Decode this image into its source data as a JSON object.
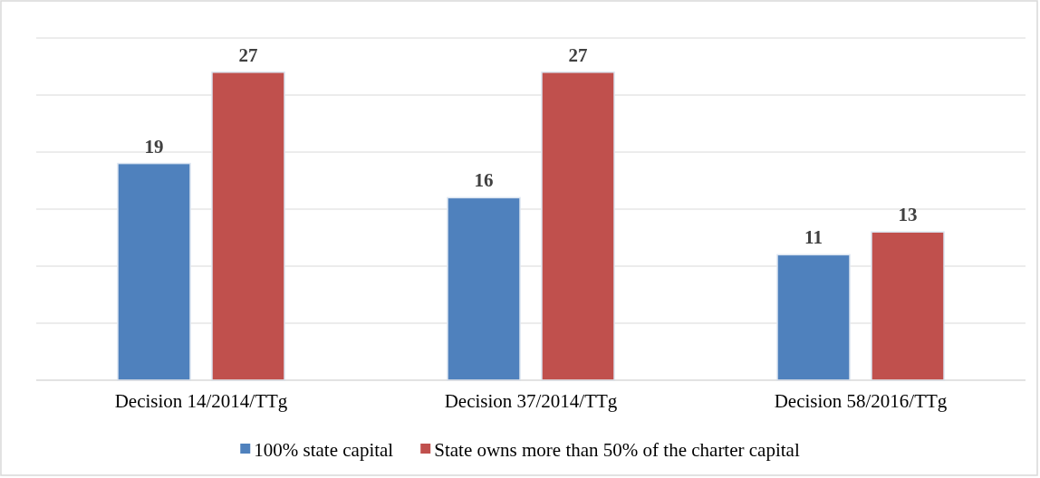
{
  "chart_data": {
    "type": "bar",
    "categories": [
      "Decision 14/2014/TTg",
      "Decision 37/2014/TTg",
      "Decision 58/2016/TTg"
    ],
    "series": [
      {
        "name": "100% state capital",
        "color": "#4f81bd",
        "values": [
          19,
          16,
          11
        ]
      },
      {
        "name": "State owns more than 50% of the charter capital",
        "color": "#c0504d",
        "values": [
          27,
          27,
          13
        ]
      }
    ],
    "ylim": [
      0,
      30
    ],
    "yticks": [
      {
        "value": 0,
        "label": null
      },
      {
        "value": 5,
        "label": null
      },
      {
        "value": 10,
        "label": null
      },
      {
        "value": 15,
        "label": null
      },
      {
        "value": 20,
        "label": null
      },
      {
        "value": 25,
        "label": null
      },
      {
        "value": 30,
        "label": null
      }
    ],
    "tick_labels": "x",
    "grid": "y",
    "legend": "bottom",
    "data_labels": true
  }
}
